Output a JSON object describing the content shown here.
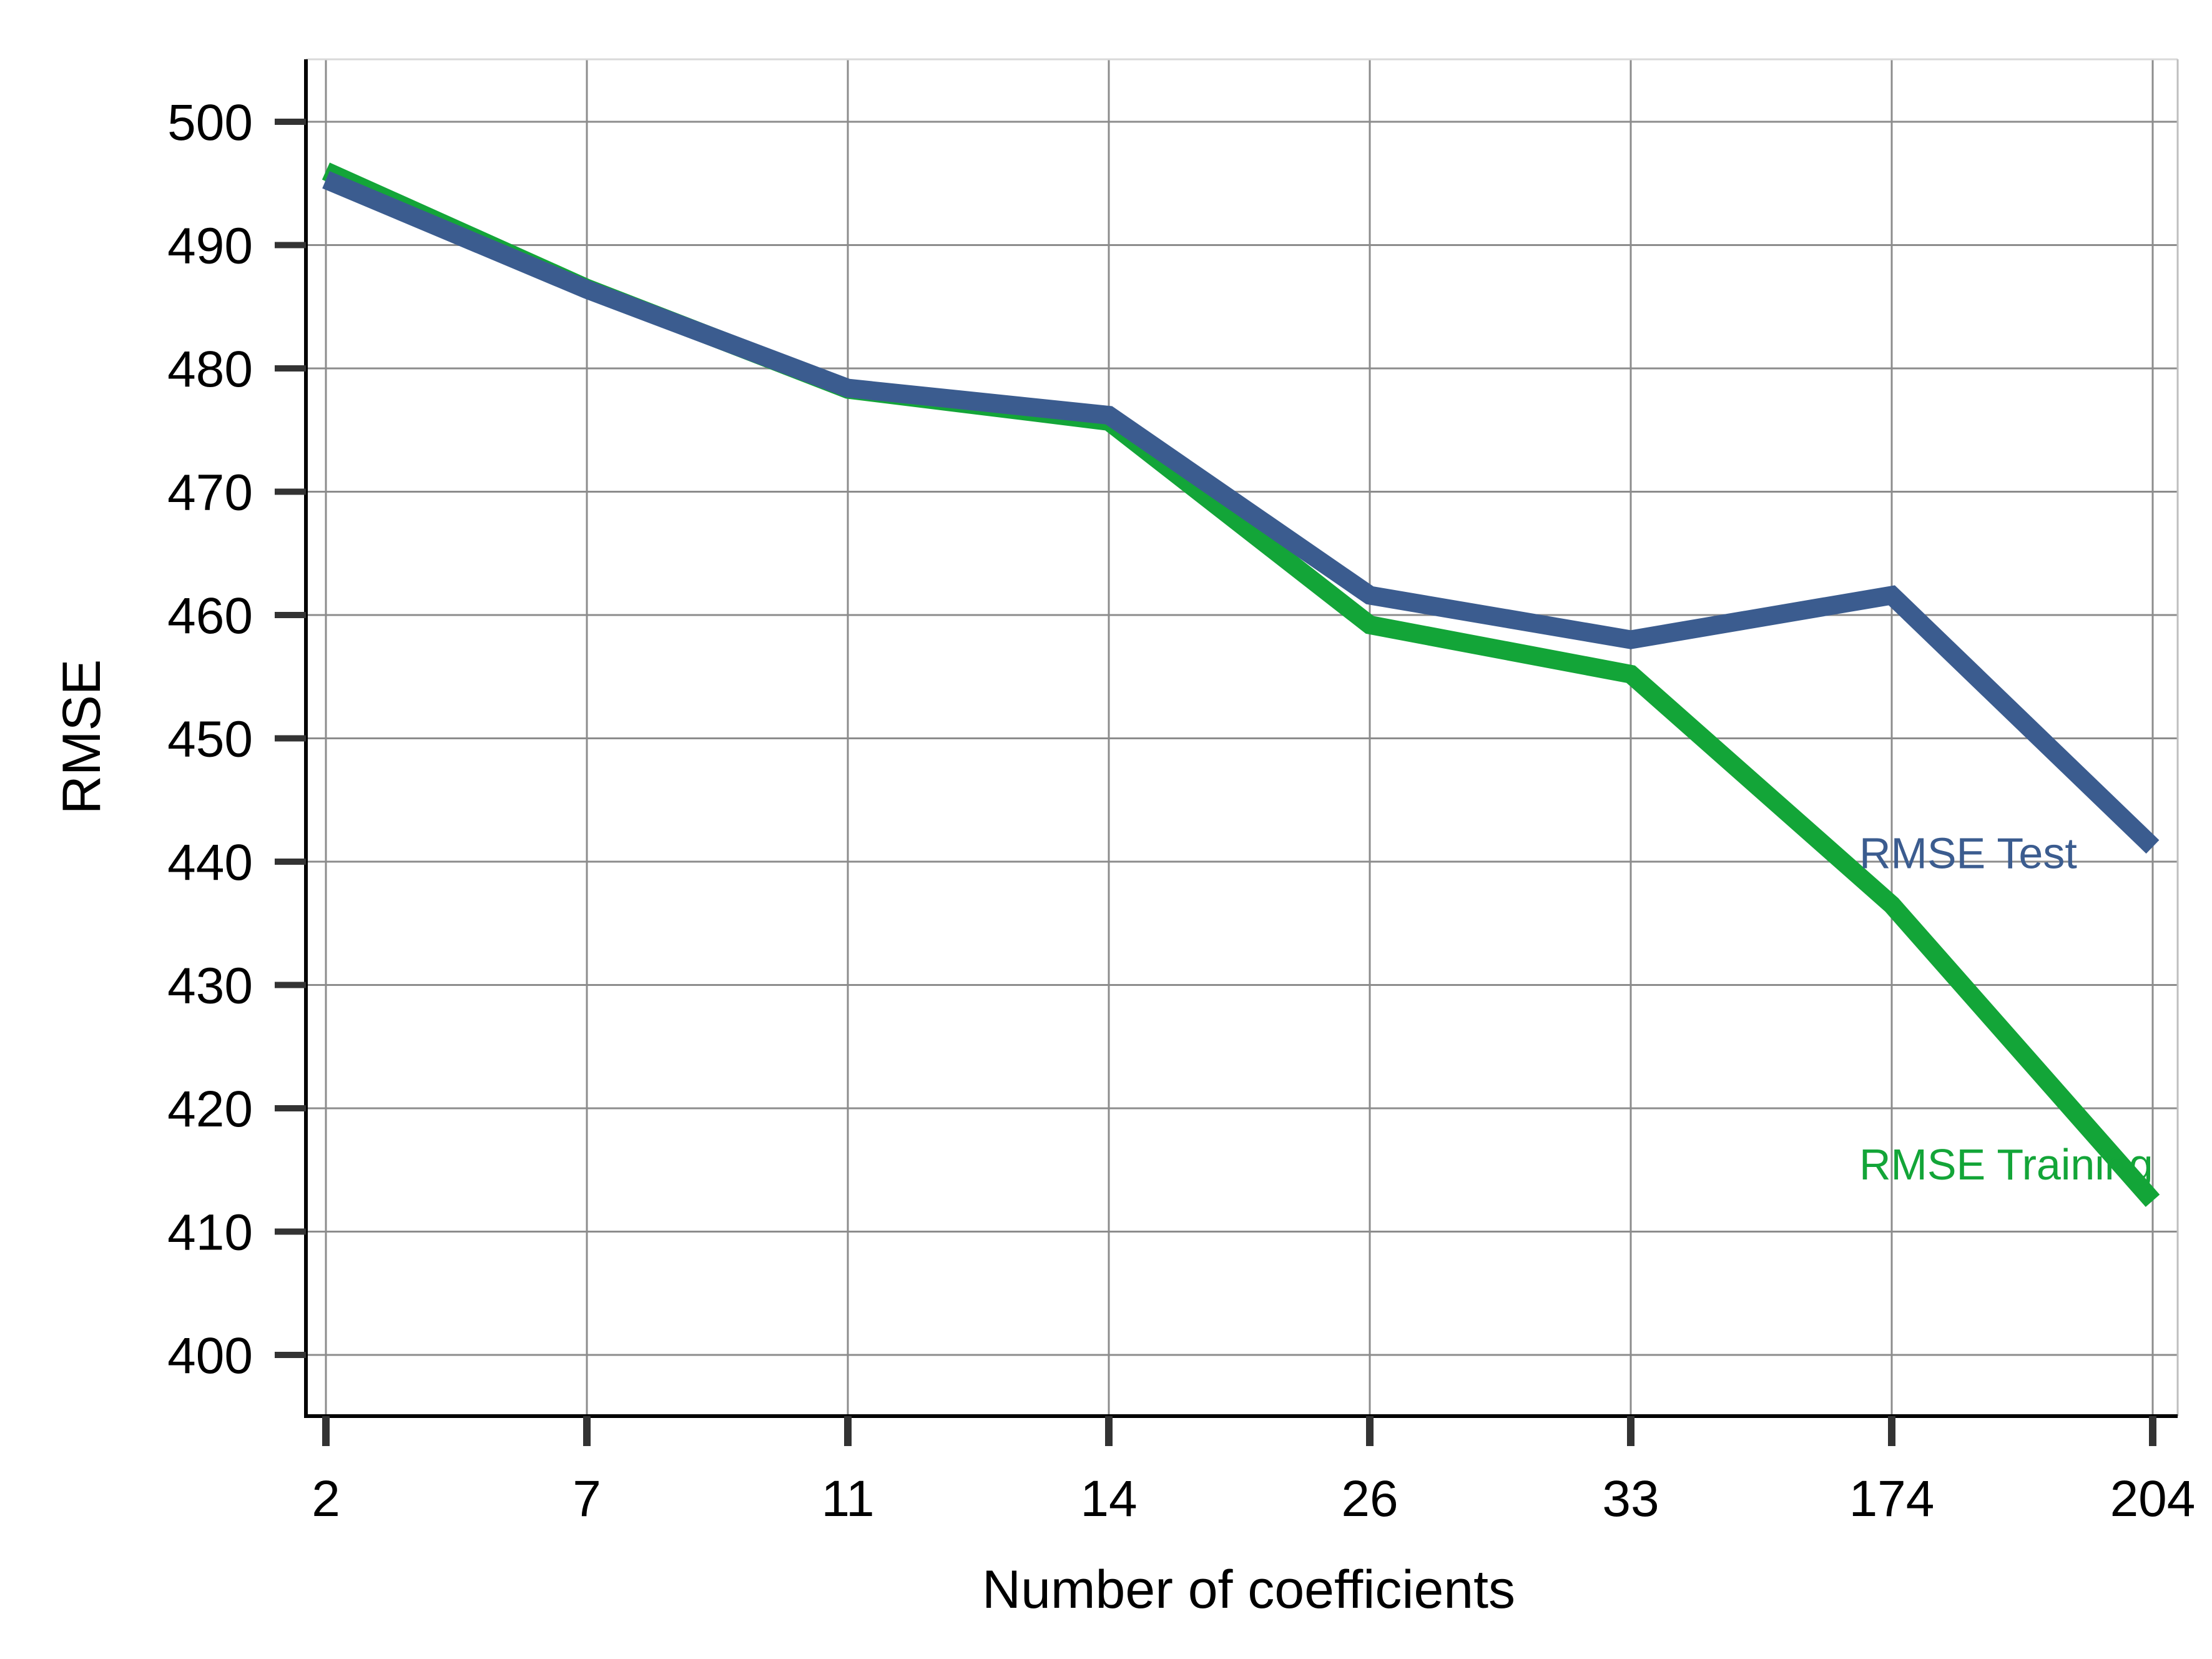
{
  "chart_data": {
    "type": "line",
    "title": "",
    "xlabel": "Number of coefficients",
    "ylabel": "RMSE",
    "categories": [
      "2",
      "7",
      "11",
      "14",
      "26",
      "33",
      "174",
      "204"
    ],
    "ylim": [
      400,
      500
    ],
    "yticks": [
      400,
      410,
      420,
      430,
      440,
      450,
      460,
      470,
      480,
      490,
      500
    ],
    "grid": true,
    "legend": "inline-right",
    "series": [
      {
        "name": "RMSE Training",
        "color": "#13a538",
        "values": [
          496,
          486.5,
          478.3,
          475.7,
          459.2,
          455.2,
          436.5,
          412.5
        ]
      },
      {
        "name": "RMSE Test",
        "color": "#3b5c8f",
        "values": [
          495.3,
          486.4,
          478.4,
          476.2,
          461.6,
          458.0,
          461.6,
          441.2
        ]
      }
    ]
  }
}
